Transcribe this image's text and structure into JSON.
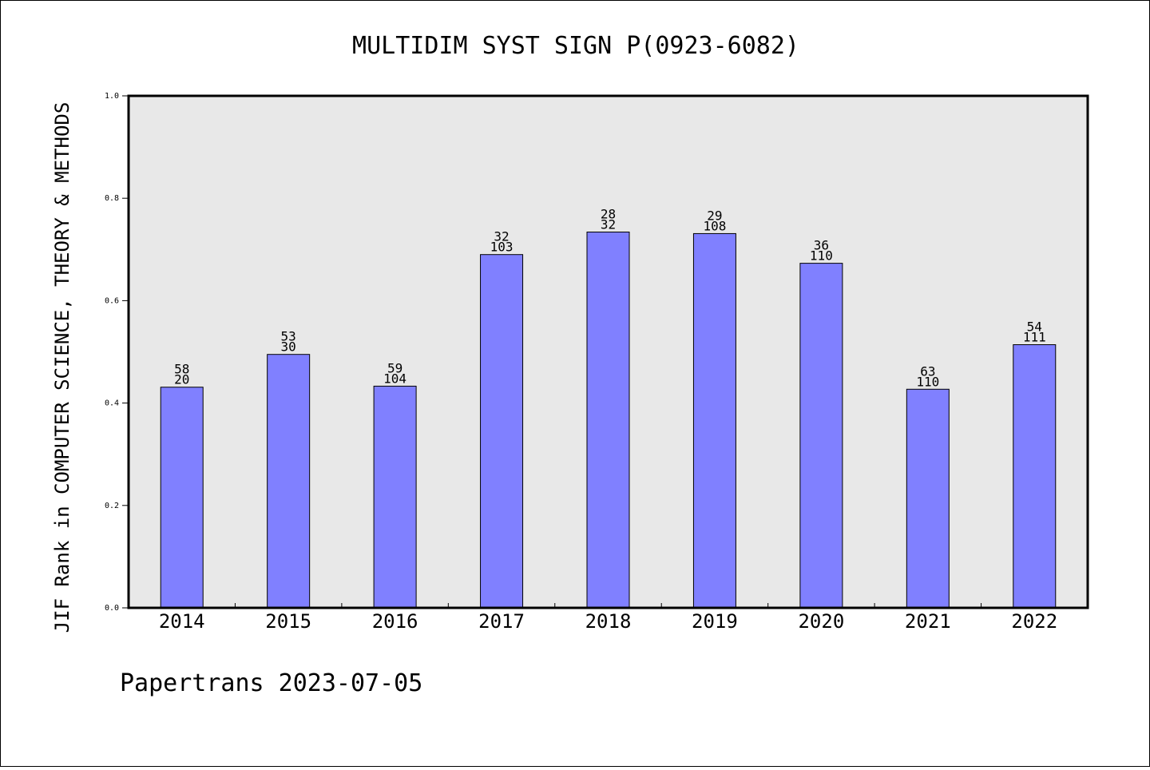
{
  "chart_data": {
    "type": "bar",
    "title": "MULTIDIM SYST SIGN P(0923-6082)",
    "xlabel": "",
    "ylabel": "JIF Rank in COMPUTER SCIENCE, THEORY & METHODS",
    "ylim": [
      0,
      1
    ],
    "yticks": [
      "0.0",
      "0.2",
      "0.4",
      "0.6",
      "0.8",
      "1.0"
    ],
    "categories": [
      "2014",
      "2015",
      "2016",
      "2017",
      "2018",
      "2019",
      "2020",
      "2021",
      "2022"
    ],
    "values": [
      0.431,
      0.495,
      0.433,
      0.69,
      0.734,
      0.731,
      0.673,
      0.427,
      0.514
    ],
    "bar_labels": [
      [
        "58",
        "20"
      ],
      [
        "53",
        "30"
      ],
      [
        "59",
        "104"
      ],
      [
        "32",
        "103"
      ],
      [
        "28",
        "32"
      ],
      [
        "29",
        "108"
      ],
      [
        "36",
        "110"
      ],
      [
        "63",
        "110"
      ],
      [
        "54",
        "111"
      ]
    ],
    "grid": false,
    "legend": "none",
    "colors": {
      "bar": "#8080ff",
      "plot_bg": "#e8e8e8"
    }
  },
  "footer": "Papertrans 2023-07-05"
}
